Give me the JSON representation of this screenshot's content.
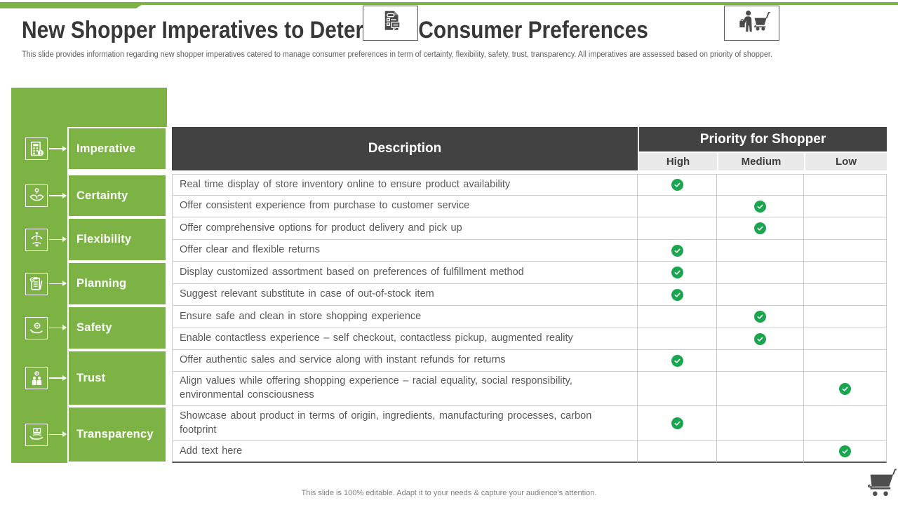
{
  "page": {
    "title": "New Shopper Imperatives to Determine Consumer Preferences",
    "subtitle": "This slide provides information regarding new shopper imperatives catered to manage consumer preferences in term of certainty, flexibility, safety, trust, transparency. All imperatives are assessed based on priority of shopper.",
    "footer_note": "This slide is 100% editable. Adapt it to your needs & capture your audience's attention."
  },
  "colors": {
    "brand_green": "#7db344",
    "check_green": "#1aa64f",
    "header_dark": "#424242"
  },
  "sidebar": {
    "items": [
      {
        "label": "Imperative",
        "icon": "imperative-icon"
      },
      {
        "label": "Certainty",
        "icon": "certainty-icon"
      },
      {
        "label": "Flexibility",
        "icon": "flexibility-icon"
      },
      {
        "label": "Planning",
        "icon": "planning-icon"
      },
      {
        "label": "Safety",
        "icon": "safety-icon"
      },
      {
        "label": "Trust",
        "icon": "trust-icon"
      },
      {
        "label": "Transparency",
        "icon": "transparency-icon"
      }
    ]
  },
  "table": {
    "description_header": "Description",
    "priority_header": "Priority  for Shopper",
    "priority_levels": [
      "High",
      "Medium",
      "Low"
    ],
    "rows": [
      {
        "description": "Real time display of store inventory  online to ensure  product availability",
        "priority": "High"
      },
      {
        "description": "Offer consistent  experience from purchase to customer  service",
        "priority": "Medium"
      },
      {
        "description": "Offer comprehensive  options for product delivery  and pick up",
        "priority": "Medium"
      },
      {
        "description": "Offer clear and flexible  returns",
        "priority": "High"
      },
      {
        "description": "Display customized  assortment  based on preferences  of fulfillment  method",
        "priority": "High"
      },
      {
        "description": "Suggest relevant  substitute  in case of out-of-stock  item",
        "priority": "High"
      },
      {
        "description": "Ensure safe and clean in store shopping  experience",
        "priority": "Medium"
      },
      {
        "description": "Enable contactless  experience – self checkout,  contactless  pickup, augmented  reality",
        "priority": "Medium"
      },
      {
        "description": "Offer authentic  sales and service along with instant  refunds  for returns",
        "priority": "High"
      },
      {
        "description": "Align values  while offering  shopping experience  – racial equality,  social responsibility, environmental  consciousness",
        "priority": "Low"
      },
      {
        "description": "Showcase about product in terms of origin,  ingredients,  manufacturing  processes, carbon footprint",
        "priority": "High"
      },
      {
        "description": "Add text here",
        "priority": "Low"
      }
    ]
  },
  "decor_icons": {
    "description_icon": "document-checklist-icon",
    "priority_icon": "shopper-with-cart-icon",
    "corner_icon": "shopping-cart-icon"
  }
}
